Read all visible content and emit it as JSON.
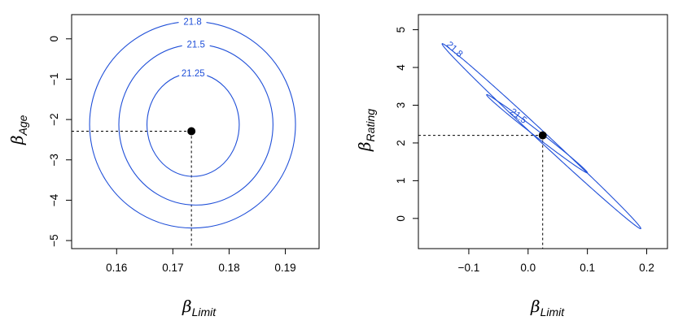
{
  "chart_data": [
    {
      "type": "contour",
      "xlabel": {
        "symbol": "β",
        "subscript": "Limit"
      },
      "ylabel": {
        "symbol": "β",
        "subscript": "Age"
      },
      "xlim": [
        0.152,
        0.196
      ],
      "ylim": [
        -5.2,
        0.6
      ],
      "xticks": [
        0.16,
        0.17,
        0.18,
        0.19
      ],
      "xtick_labels": [
        "0.16",
        "0.17",
        "0.18",
        "0.19"
      ],
      "yticks": [
        0,
        -1,
        -2,
        -3,
        -4,
        -5
      ],
      "ytick_labels": [
        "0",
        "−1",
        "−2",
        "−3",
        "−4",
        "−5"
      ],
      "minimum": {
        "x": 0.1733,
        "y": -2.29
      },
      "contours": [
        {
          "level": "21.25",
          "center_x": 0.1736,
          "center_y": -2.13,
          "semi_x": 0.0082,
          "semi_y": 1.28,
          "angle_deg": 0
        },
        {
          "level": "21.5",
          "center_x": 0.1741,
          "center_y": -2.13,
          "semi_x": 0.0137,
          "semi_y": 1.99,
          "angle_deg": 0
        },
        {
          "level": "21.8",
          "center_x": 0.1735,
          "center_y": -2.13,
          "semi_x": 0.0183,
          "semi_y": 2.56,
          "angle_deg": 0
        }
      ],
      "contour_color": "#1f4fd8",
      "grid": false
    },
    {
      "type": "contour",
      "xlabel": {
        "symbol": "β",
        "subscript": "Limit"
      },
      "ylabel": {
        "symbol": "β",
        "subscript": "Rating"
      },
      "xlim": [
        -0.185,
        0.235
      ],
      "ylim": [
        -0.8,
        5.4
      ],
      "xticks": [
        -0.1,
        0.0,
        0.1,
        0.2
      ],
      "xtick_labels": [
        "−0.1",
        "0.0",
        "0.1",
        "0.2"
      ],
      "yticks": [
        0,
        1,
        2,
        3,
        4,
        5
      ],
      "ytick_labels": [
        "0",
        "1",
        "2",
        "3",
        "4",
        "5"
      ],
      "minimum": {
        "x": 0.0246,
        "y": 2.2
      },
      "contours": [
        {
          "level": "21.5",
          "center_x": 0.0246,
          "center_y": 2.2,
          "end_a": [
            -0.07,
            3.28
          ],
          "end_b": [
            0.1,
            1.21
          ],
          "half_width": 0.005
        },
        {
          "level": "21.8",
          "center_x": 0.0246,
          "center_y": 2.2,
          "end_a": [
            -0.145,
            4.63
          ],
          "end_b": [
            0.19,
            -0.27
          ],
          "half_width": 0.008
        }
      ],
      "contour_color": "#1f4fd8",
      "grid": false
    }
  ]
}
